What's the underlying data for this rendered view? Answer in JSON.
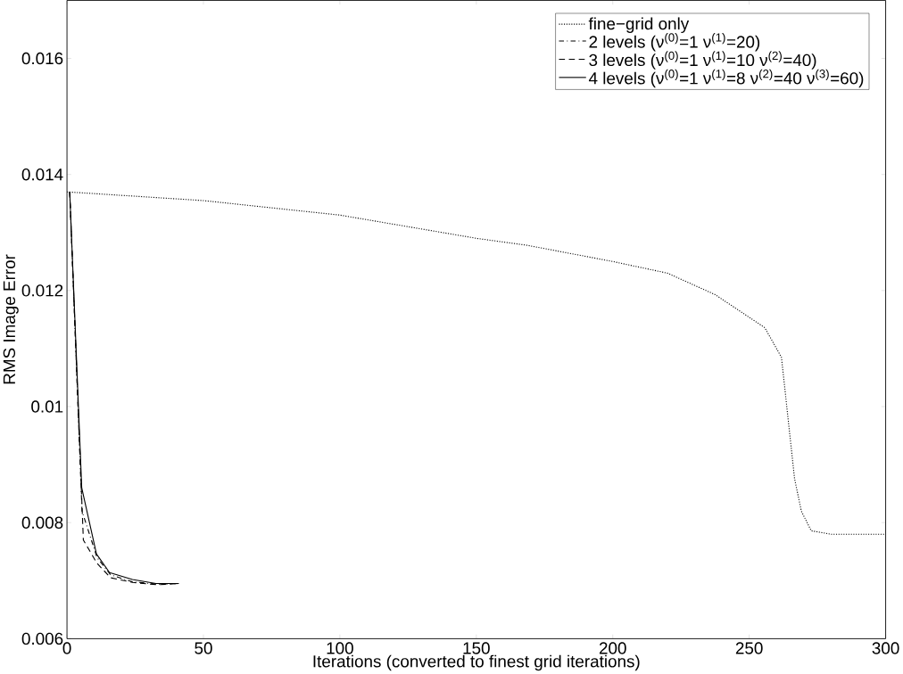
{
  "chart_data": {
    "type": "line",
    "xlabel": "Iterations (converted to finest grid iterations)",
    "ylabel": "RMS Image Error",
    "xlim": [
      0,
      300
    ],
    "ylim": [
      0.006,
      0.017
    ],
    "xticks": [
      0,
      50,
      100,
      150,
      200,
      250,
      300
    ],
    "yticks": [
      0.006,
      0.008,
      0.01,
      0.012,
      0.014,
      0.016
    ],
    "legend": "top right",
    "grid": false,
    "series": [
      {
        "name": "fine−grid only",
        "color": "#000000",
        "line_style": "dotted",
        "x": [
          0,
          50,
          100,
          150,
          168.6,
          200,
          220,
          237.5,
          255.7,
          261.8,
          264,
          266.6,
          269.1,
          272.7,
          280,
          300
        ],
        "values": [
          0.0137,
          0.01355,
          0.0133,
          0.0129,
          0.01278,
          0.0125,
          0.0123,
          0.01193,
          0.01136,
          0.01085,
          0.0099,
          0.00876,
          0.0082,
          0.00786,
          0.0078,
          0.0078
        ]
      },
      {
        "name": "2 levels (ν$^{(0)}$=1 ν$^{(1)}$=20)",
        "color": "#000000",
        "line_style": "dashdot",
        "x": [
          1,
          5.5,
          11,
          16,
          24,
          33,
          41
        ],
        "values": [
          0.0137,
          0.0082,
          0.0074,
          0.0071,
          0.00698,
          0.00694,
          0.00695
        ]
      },
      {
        "name": "3 levels (ν$^{(0)}$=1 ν$^{(1)}$=10 ν$^{(2)}$=40)",
        "color": "#000000",
        "line_style": "dashed",
        "x": [
          1,
          6,
          11,
          16,
          24,
          33,
          41
        ],
        "values": [
          0.0137,
          0.0077,
          0.0073,
          0.00705,
          0.00697,
          0.00693,
          0.00695
        ]
      },
      {
        "name": "4 levels (ν$^{(0)}$=1 ν$^{(1)}$=8 ν$^{(2)}$=40 ν$^{(3)}$=60)",
        "color": "#000000",
        "line_style": "solid",
        "x": [
          1,
          5.4,
          10.8,
          15.6,
          24,
          32.6,
          40.5
        ],
        "values": [
          0.0137,
          0.0086,
          0.00746,
          0.00714,
          0.00702,
          0.00695,
          0.00695
        ]
      }
    ]
  }
}
